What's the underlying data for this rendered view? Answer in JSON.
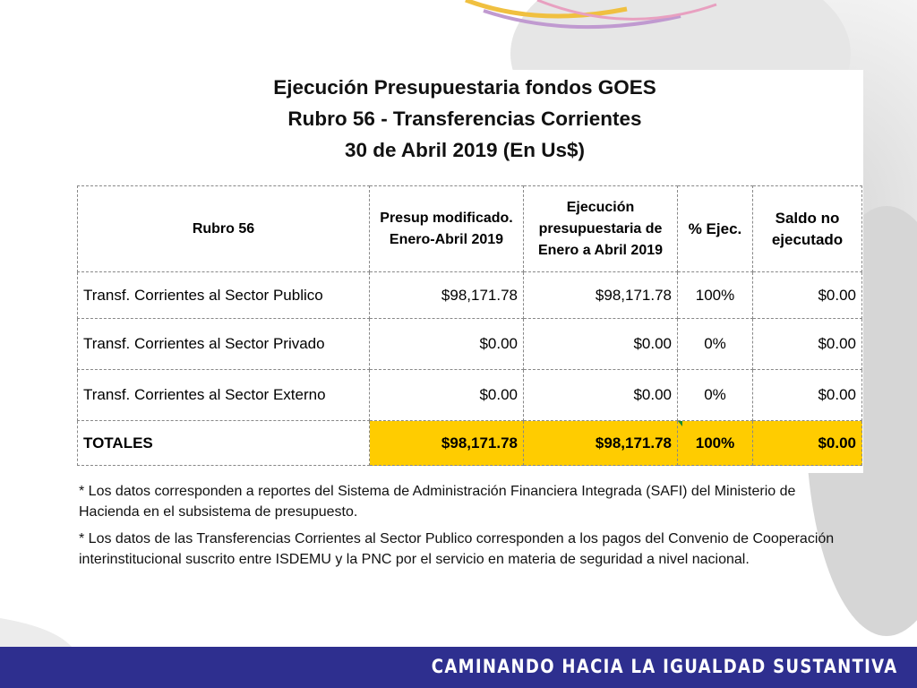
{
  "title": {
    "line1": "Ejecución Presupuestaria fondos GOES",
    "line2": "Rubro 56 - Transferencias Corrientes",
    "line3": "30 de Abril 2019 (En Us$)"
  },
  "table": {
    "headers": {
      "rubro": "Rubro 56",
      "presup": "Presup modificado. Enero-Abril 2019",
      "ejecucion": "Ejecución presupuestaria de Enero a Abril 2019",
      "pct": "% Ejec.",
      "saldo": "Saldo no ejecutado"
    },
    "rows": [
      {
        "label": "Transf. Corrientes al Sector Publico",
        "presup": "$98,171.78",
        "ejecucion": "$98,171.78",
        "pct": "100%",
        "saldo": "$0.00"
      },
      {
        "label": "Transf. Corrientes al Sector Privado",
        "presup": "$0.00",
        "ejecucion": "$0.00",
        "pct": "0%",
        "saldo": "$0.00"
      },
      {
        "label": "Transf. Corrientes al Sector Externo",
        "presup": "$0.00",
        "ejecucion": "$0.00",
        "pct": "0%",
        "saldo": "$0.00"
      }
    ],
    "totals": {
      "label": "TOTALES",
      "presup": "$98,171.78",
      "ejecucion": "$98,171.78",
      "pct": "100%",
      "saldo": "$0.00"
    }
  },
  "notes": {
    "note1": "*  Los datos corresponden a reportes del Sistema de Administración Financiera Integrada (SAFI) del Ministerio de Hacienda en el subsistema de presupuesto.",
    "note2": "*  Los datos de las Transferencias Corrientes al Sector Publico corresponden a los pagos del Convenio de Cooperación interinstitucional suscrito entre ISDEMU y la PNC   por el servicio en materia de seguridad a nivel nacional."
  },
  "footer": {
    "slogan": "CAMINANDO HACIA LA IGUALDAD SUSTANTIVA"
  },
  "colors": {
    "footer_bar": "#2e2f8f",
    "totals_highlight": "#ffcc00"
  }
}
